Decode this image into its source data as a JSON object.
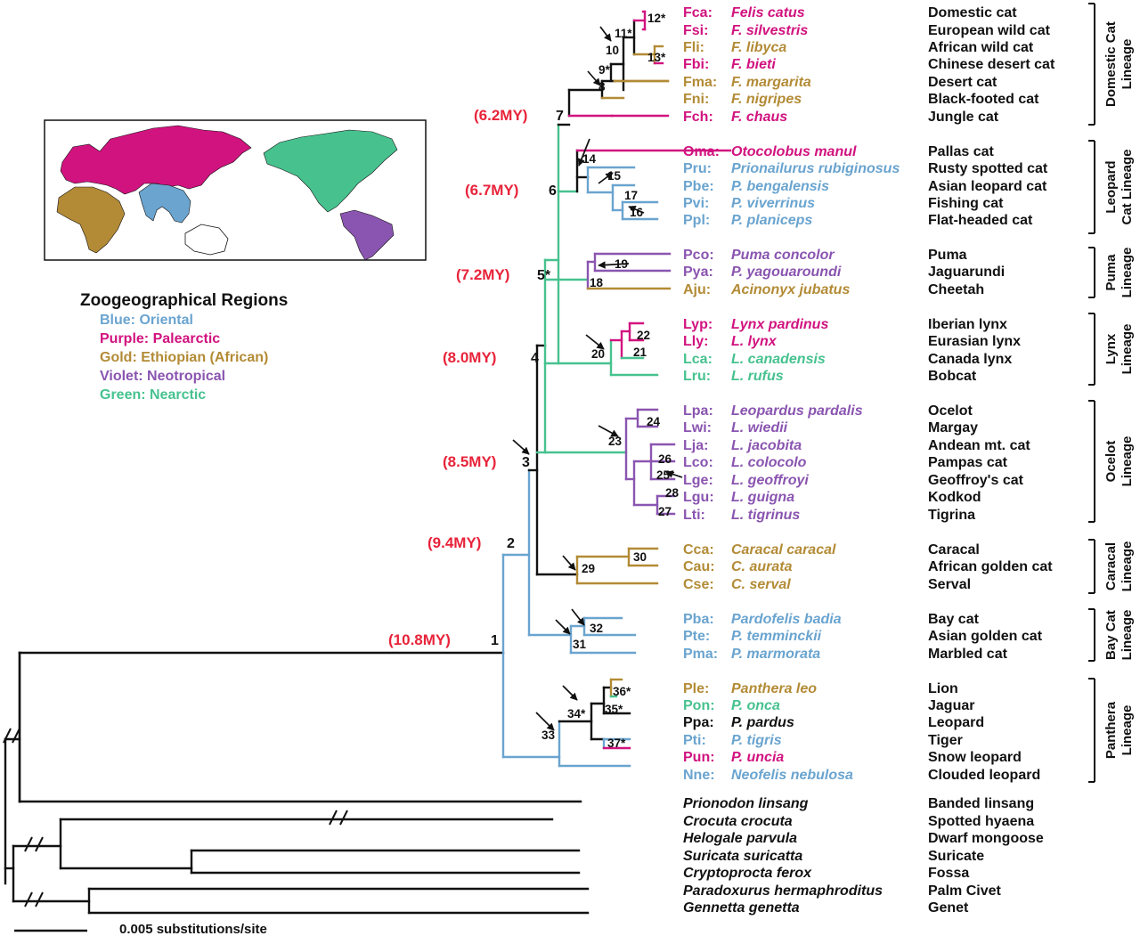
{
  "colors": {
    "blue": "#6aa4cf",
    "purple": "#d1137f",
    "gold": "#b38b36",
    "violet": "#8a55b0",
    "green": "#47c28f",
    "black": "#111111",
    "age": "#e8233a"
  },
  "map": {
    "title": "Zoogeographical Regions",
    "legend": [
      {
        "text": "Blue: Oriental",
        "color": "blue"
      },
      {
        "text": "Purple: Palearctic",
        "color": "purple"
      },
      {
        "text": "Gold: Ethiopian (African)",
        "color": "gold"
      },
      {
        "text": "Violet: Neotropical",
        "color": "violet"
      },
      {
        "text": "Green: Nearctic",
        "color": "green"
      }
    ]
  },
  "taxa": [
    {
      "abbr": "Fca:",
      "name": "Felis catus",
      "common": "Domestic cat",
      "color": "purple"
    },
    {
      "abbr": "Fsi:",
      "name": "F. silvestris",
      "common": "European wild cat",
      "color": "purple"
    },
    {
      "abbr": "Fli:",
      "name": "F. libyca",
      "common": "African wild cat",
      "color": "gold"
    },
    {
      "abbr": "Fbi:",
      "name": "F. bieti",
      "common": "Chinese desert cat",
      "color": "purple"
    },
    {
      "abbr": "Fma:",
      "name": "F. margarita",
      "common": "Desert cat",
      "color": "gold"
    },
    {
      "abbr": "Fni:",
      "name": "F. nigripes",
      "common": "Black-footed cat",
      "color": "gold"
    },
    {
      "abbr": "Fch:",
      "name": "F. chaus",
      "common": "Jungle cat",
      "color": "purple"
    },
    {
      "abbr": "Oma:",
      "name": "Otocolobus manul",
      "common": "Pallas cat",
      "color": "purple"
    },
    {
      "abbr": "Pru:",
      "name": "Prionailurus rubiginosus",
      "common": "Rusty spotted cat",
      "color": "blue"
    },
    {
      "abbr": "Pbe:",
      "name": "P. bengalensis",
      "common": "Asian leopard cat",
      "color": "blue"
    },
    {
      "abbr": "Pvi:",
      "name": "P. viverrinus",
      "common": "Fishing cat",
      "color": "blue"
    },
    {
      "abbr": "Ppl:",
      "name": "P. planiceps",
      "common": "Flat-headed cat",
      "color": "blue"
    },
    {
      "abbr": "Pco:",
      "name": "Puma concolor",
      "common": "Puma",
      "color": "violet"
    },
    {
      "abbr": "Pya:",
      "name": "P. yagouaroundi",
      "common": "Jaguarundi",
      "color": "violet"
    },
    {
      "abbr": "Aju:",
      "name": "Acinonyx jubatus",
      "common": "Cheetah",
      "color": "gold"
    },
    {
      "abbr": "Lyp:",
      "name": "Lynx pardinus",
      "common": "Iberian lynx",
      "color": "purple"
    },
    {
      "abbr": "Lly:",
      "name": "L. lynx",
      "common": "Eurasian lynx",
      "color": "purple"
    },
    {
      "abbr": "Lca:",
      "name": "L. canadensis",
      "common": "Canada lynx",
      "color": "green"
    },
    {
      "abbr": "Lru:",
      "name": "L. rufus",
      "common": "Bobcat",
      "color": "green"
    },
    {
      "abbr": "Lpa:",
      "name": "Leopardus pardalis",
      "common": "Ocelot",
      "color": "violet"
    },
    {
      "abbr": "Lwi:",
      "name": "L. wiedii",
      "common": "Margay",
      "color": "violet"
    },
    {
      "abbr": "Lja:",
      "name": "L. jacobita",
      "common": "Andean mt. cat",
      "color": "violet"
    },
    {
      "abbr": "Lco:",
      "name": "L. colocolo",
      "common": "Pampas cat",
      "color": "violet"
    },
    {
      "abbr": "Lge:",
      "name": "L. geoffroyi",
      "common": "Geoffroy's cat",
      "color": "violet"
    },
    {
      "abbr": "Lgu:",
      "name": "L. guigna",
      "common": "Kodkod",
      "color": "violet"
    },
    {
      "abbr": "Lti:",
      "name": "L. tigrinus",
      "common": "Tigrina",
      "color": "violet"
    },
    {
      "abbr": "Cca:",
      "name": "Caracal caracal",
      "common": "Caracal",
      "color": "gold"
    },
    {
      "abbr": "Cau:",
      "name": "C. aurata",
      "common": "African golden cat",
      "color": "gold"
    },
    {
      "abbr": "Cse:",
      "name": "C. serval",
      "common": "Serval",
      "color": "gold"
    },
    {
      "abbr": "Pba:",
      "name": "Pardofelis badia",
      "common": "Bay cat",
      "color": "blue"
    },
    {
      "abbr": "Pte:",
      "name": "P. temminckii",
      "common": "Asian golden cat",
      "color": "blue"
    },
    {
      "abbr": "Pma:",
      "name": "P. marmorata",
      "common": "Marbled cat",
      "color": "blue"
    },
    {
      "abbr": "Ple:",
      "name": "Panthera leo",
      "common": "Lion",
      "color": "gold"
    },
    {
      "abbr": "Pon:",
      "name": "P. onca",
      "common": "Jaguar",
      "color": "green"
    },
    {
      "abbr": "Ppa:",
      "name": "P. pardus",
      "common": "Leopard",
      "color": "black"
    },
    {
      "abbr": "Pti:",
      "name": "P. tigris",
      "common": "Tiger",
      "color": "blue"
    },
    {
      "abbr": "Pun:",
      "name": "P. uncia",
      "common": "Snow leopard",
      "color": "purple"
    },
    {
      "abbr": "Nne:",
      "name": "Neofelis nebulosa",
      "common": "Clouded leopard",
      "color": "blue"
    }
  ],
  "outgroups": [
    {
      "name": "Prionodon linsang",
      "common": "Banded linsang"
    },
    {
      "name": "Crocuta crocuta",
      "common": "Spotted hyaena"
    },
    {
      "name": "Helogale parvula",
      "common": "Dwarf mongoose"
    },
    {
      "name": "Suricata suricatta",
      "common": "Suricate"
    },
    {
      "name": "Cryptoprocta ferox",
      "common": "Fossa"
    },
    {
      "name": "Paradoxurus hermaphroditus",
      "common": "Palm Civet"
    },
    {
      "name": "Gennetta genetta",
      "common": "Genet"
    }
  ],
  "lineages": [
    {
      "line1": "Domestic Cat",
      "line2": "Lineage"
    },
    {
      "line1": "Leopard",
      "line2": "Cat Lineage"
    },
    {
      "line1": "Puma",
      "line2": "Lineage"
    },
    {
      "line1": "Lynx",
      "line2": "Lineage"
    },
    {
      "line1": "Ocelot",
      "line2": "Lineage"
    },
    {
      "line1": "Caracal",
      "line2": "Lineage"
    },
    {
      "line1": "Bay Cat",
      "line2": "Lineage"
    },
    {
      "line1": "Panthera",
      "line2": "Lineage"
    }
  ],
  "major_nodes": [
    {
      "label": "1",
      "age": "(10.8MY)"
    },
    {
      "label": "2",
      "age": "(9.4MY)"
    },
    {
      "label": "3",
      "age": "(8.5MY)"
    },
    {
      "label": "4",
      "age": "(8.0MY)"
    },
    {
      "label": "5*",
      "age": "(7.2MY)"
    },
    {
      "label": "6",
      "age": "(6.7MY)"
    },
    {
      "label": "7",
      "age": "(6.2MY)"
    }
  ],
  "minor_nodes": [
    "8",
    "9*",
    "10",
    "11*",
    "12*",
    "13*",
    "14",
    "15",
    "16",
    "17",
    "18",
    "19",
    "20",
    "21",
    "22",
    "23",
    "24",
    "25*",
    "26",
    "27",
    "28",
    "29",
    "30",
    "31",
    "32",
    "33",
    "34*",
    "35*",
    "36*",
    "37*"
  ],
  "scale_label": "0.005 substitutions/site"
}
